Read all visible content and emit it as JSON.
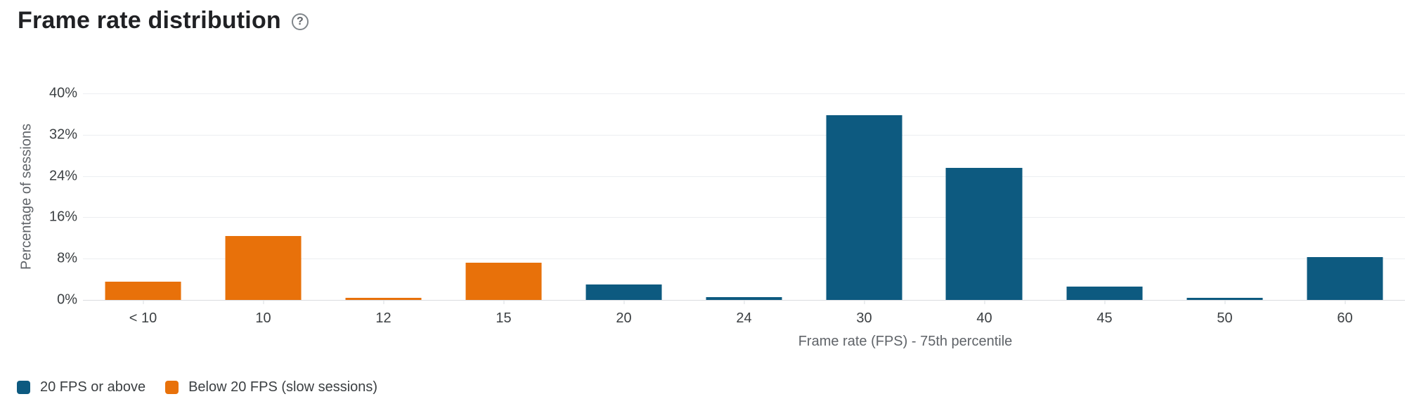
{
  "header": {
    "title": "Frame rate distribution",
    "help_icon": "?"
  },
  "chart_data": {
    "type": "bar",
    "title": "Frame rate distribution",
    "categories": [
      "< 10",
      "10",
      "12",
      "15",
      "20",
      "24",
      "30",
      "40",
      "45",
      "50",
      "60"
    ],
    "values": [
      3.5,
      12.4,
      0.4,
      7.2,
      3.0,
      0.6,
      35.8,
      25.6,
      2.6,
      0.4,
      8.3
    ],
    "groups": [
      "below",
      "below",
      "below",
      "below",
      "above",
      "above",
      "above",
      "above",
      "above",
      "above",
      "above"
    ],
    "colors": {
      "above": "#0d5a80",
      "below": "#e8710a"
    },
    "xlabel": "Frame rate (FPS) - 75th percentile",
    "ylabel": "Percentage of sessions",
    "ylim": [
      0,
      40
    ],
    "yticks": [
      "0%",
      "8%",
      "16%",
      "24%",
      "32%",
      "40%"
    ],
    "grid": true,
    "legend_position": "bottom-left"
  },
  "legend": {
    "items": [
      {
        "label": "20 FPS or above",
        "series": "above",
        "color": "#0d5a80"
      },
      {
        "label": "Below 20 FPS (slow sessions)",
        "series": "below",
        "color": "#e8710a"
      }
    ]
  }
}
